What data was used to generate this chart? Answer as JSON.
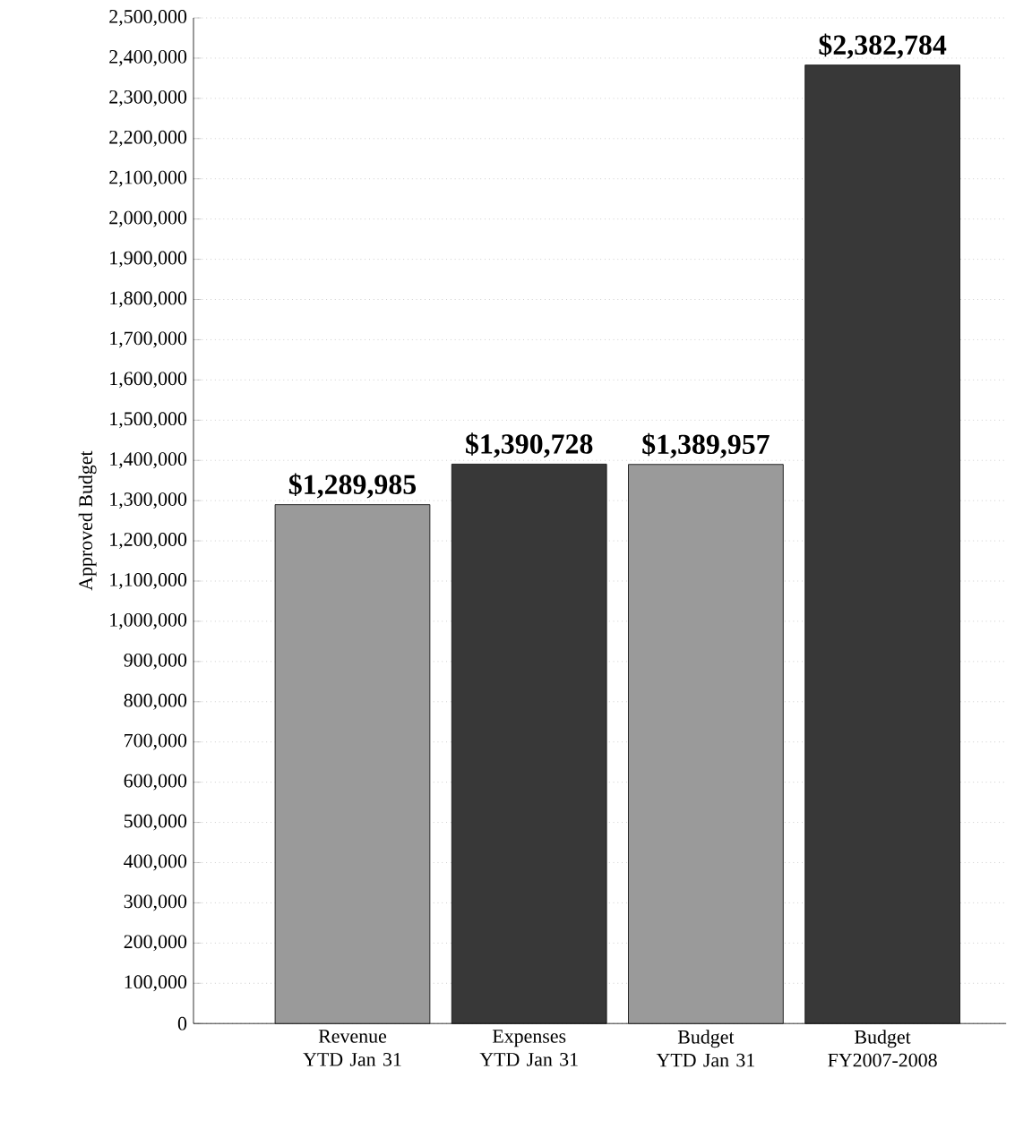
{
  "chart_data": {
    "type": "bar",
    "ylabel": "Approved Budget",
    "categories": [
      "Revenue YTD Jan 31",
      "Expenses YTD Jan 31",
      "Budget YTD Jan 31",
      "Budget FY2007-2008"
    ],
    "values": [
      1289985,
      1390728,
      1389957,
      2382784
    ],
    "colors": [
      "#9a9a9a",
      "#383838",
      "#9a9a9a",
      "#383838"
    ],
    "value_labels": [
      "$1,289,985",
      "$1,390,728",
      "$1,389,957",
      "$2,382,784"
    ],
    "ylim": [
      0,
      2500000
    ],
    "yticks": [
      {
        "value": 0,
        "label": "0"
      },
      {
        "value": 100000,
        "label": "100,000"
      },
      {
        "value": 200000,
        "label": "200,000"
      },
      {
        "value": 300000,
        "label": "300,000"
      },
      {
        "value": 400000,
        "label": "400,000"
      },
      {
        "value": 500000,
        "label": "500,000"
      },
      {
        "value": 600000,
        "label": "600,000"
      },
      {
        "value": 700000,
        "label": "700,000"
      },
      {
        "value": 800000,
        "label": "800,000"
      },
      {
        "value": 900000,
        "label": "900,000"
      },
      {
        "value": 1000000,
        "label": "1,000,000"
      },
      {
        "value": 1100000,
        "label": "1,100,000"
      },
      {
        "value": 1200000,
        "label": "1,200,000"
      },
      {
        "value": 1300000,
        "label": "1,300,000"
      },
      {
        "value": 1400000,
        "label": "1,400,000"
      },
      {
        "value": 1500000,
        "label": "1,500,000"
      },
      {
        "value": 1600000,
        "label": "1,600,000"
      },
      {
        "value": 1700000,
        "label": "1,700,000"
      },
      {
        "value": 1800000,
        "label": "1,800,000"
      },
      {
        "value": 1900000,
        "label": "1,900,000"
      },
      {
        "value": 2000000,
        "label": "2,000,000"
      },
      {
        "value": 2100000,
        "label": "2,100,000"
      },
      {
        "value": 2200000,
        "label": "2,200,000"
      },
      {
        "value": 2300000,
        "label": "2,300,000"
      },
      {
        "value": 2400000,
        "label": "2,400,000"
      },
      {
        "value": 2500000,
        "label": "2,500,000"
      }
    ],
    "grid": "y"
  }
}
